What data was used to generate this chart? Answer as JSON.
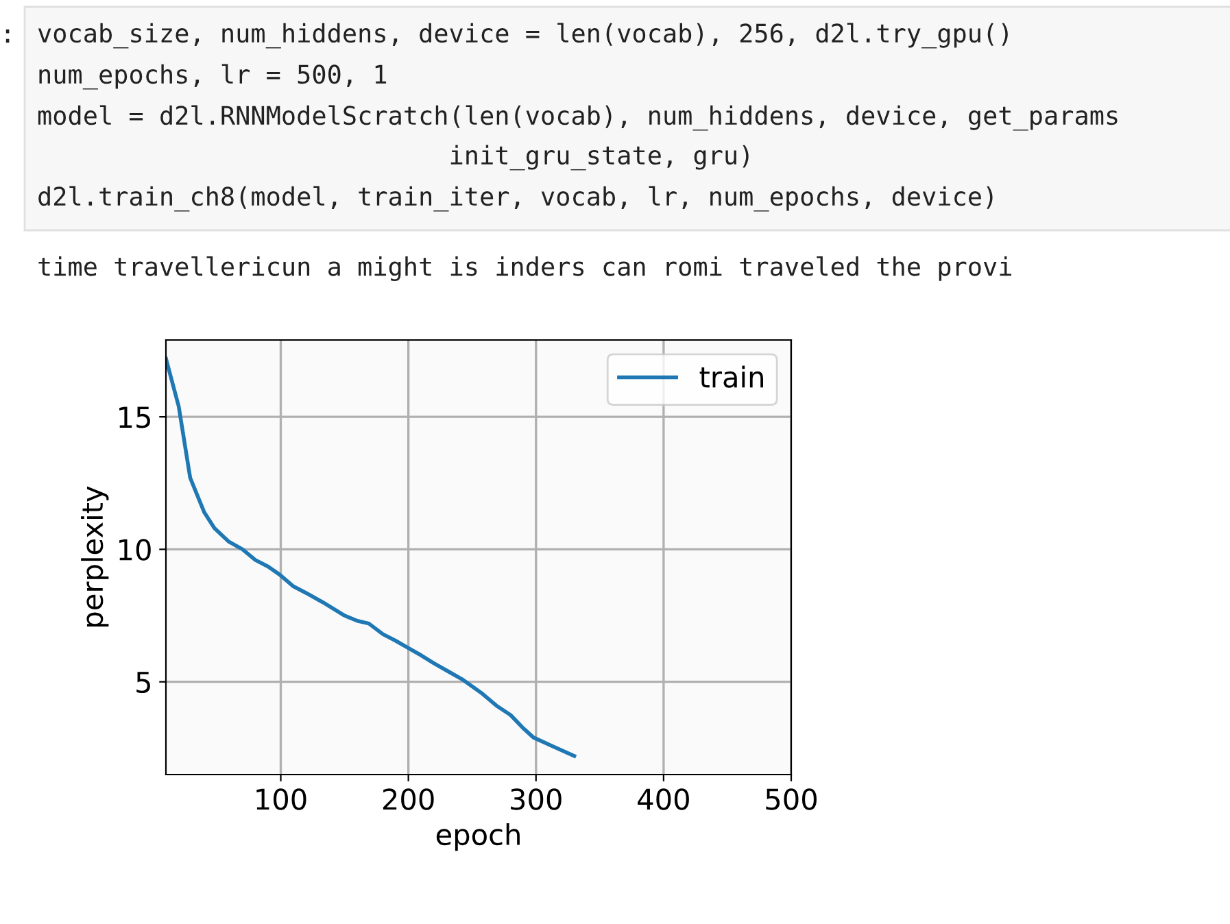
{
  "chart_data": {
    "type": "line",
    "xlabel": "epoch",
    "ylabel": "perplexity",
    "annotations": [
      ":",
      "vocab_size, num_hiddens, device = len(vocab), 256, d2l.try_gpu()",
      "num_epochs, lr = 500, 1",
      "model = d2l.RNNModelScratch(len(vocab), num_hiddens, device, get_params",
      "                           init_gru_state, gru)",
      "d2l.train_ch8(model, train_iter, vocab, lr, num_epochs, device)",
      "time travellericun a might is inders can romi traveled the provi"
    ],
    "series": [
      {
        "name": "train",
        "color": "#1f77b4",
        "x": [
          10,
          20,
          29,
          40,
          48,
          59,
          70,
          80,
          90,
          99,
          110,
          120,
          133,
          150,
          160,
          169,
          180,
          190,
          199,
          210,
          220,
          231,
          242,
          258,
          269,
          280,
          290,
          298,
          314,
          330
        ],
        "values": [
          17.2,
          15.4,
          12.7,
          11.4,
          10.8,
          10.3,
          10.0,
          9.6,
          9.35,
          9.05,
          8.6,
          8.35,
          8.0,
          7.5,
          7.3,
          7.2,
          6.8,
          6.55,
          6.3,
          6.0,
          5.7,
          5.4,
          5.1,
          4.55,
          4.1,
          3.75,
          3.25,
          2.9,
          2.55,
          2.2
        ]
      }
    ],
    "xlim": [
      10,
      500
    ],
    "ylim": [
      1.5,
      17.9
    ],
    "xticks": [
      100,
      200,
      300,
      400,
      500
    ],
    "yticks": [
      5,
      10,
      15
    ],
    "grid": true,
    "legend": "top right"
  }
}
